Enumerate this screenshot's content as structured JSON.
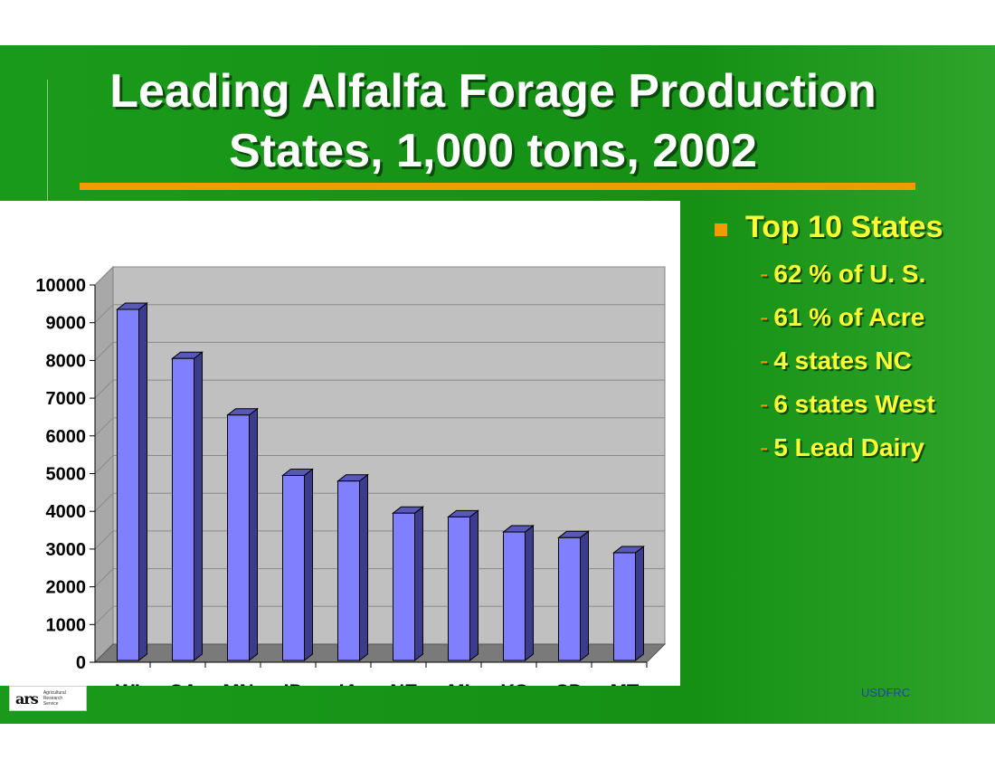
{
  "slide": {
    "title_line1": "Leading Alfalfa Forage Production",
    "title_line2": "States, 1,000 tons, 2002",
    "footer": "USDFRC",
    "logo": {
      "mark": "ars",
      "line1": "Agricultural",
      "line2": "Research",
      "line3": "Service"
    }
  },
  "bullets": {
    "heading": "Top 10 States",
    "items": [
      "62 % of U. S.",
      "61 % of Acre",
      "4 states NC",
      "6 states West",
      "5 Lead Dairy"
    ]
  },
  "colors": {
    "background": "#159015",
    "title_rule": "#f29a00",
    "bullet_text": "#ffff33",
    "bar_front": "#8080ff",
    "bar_side": "#3c3c8c",
    "bar_top": "#5858b8",
    "plot_wall": "#c0c0c0",
    "plot_floor": "#7a7a7a"
  },
  "chart_data": {
    "type": "bar",
    "categories": [
      "WI",
      "CA",
      "MN",
      "ID",
      "IA",
      "NE",
      "MI",
      "KS",
      "SD",
      "MT"
    ],
    "values": [
      9400,
      8100,
      6600,
      5000,
      4850,
      4000,
      3900,
      3500,
      3350,
      2950
    ],
    "ylim": [
      0,
      10000
    ],
    "yticks": [
      0,
      1000,
      2000,
      3000,
      4000,
      5000,
      6000,
      7000,
      8000,
      9000,
      10000
    ],
    "grid": true,
    "three_d": true,
    "legend": "none"
  }
}
